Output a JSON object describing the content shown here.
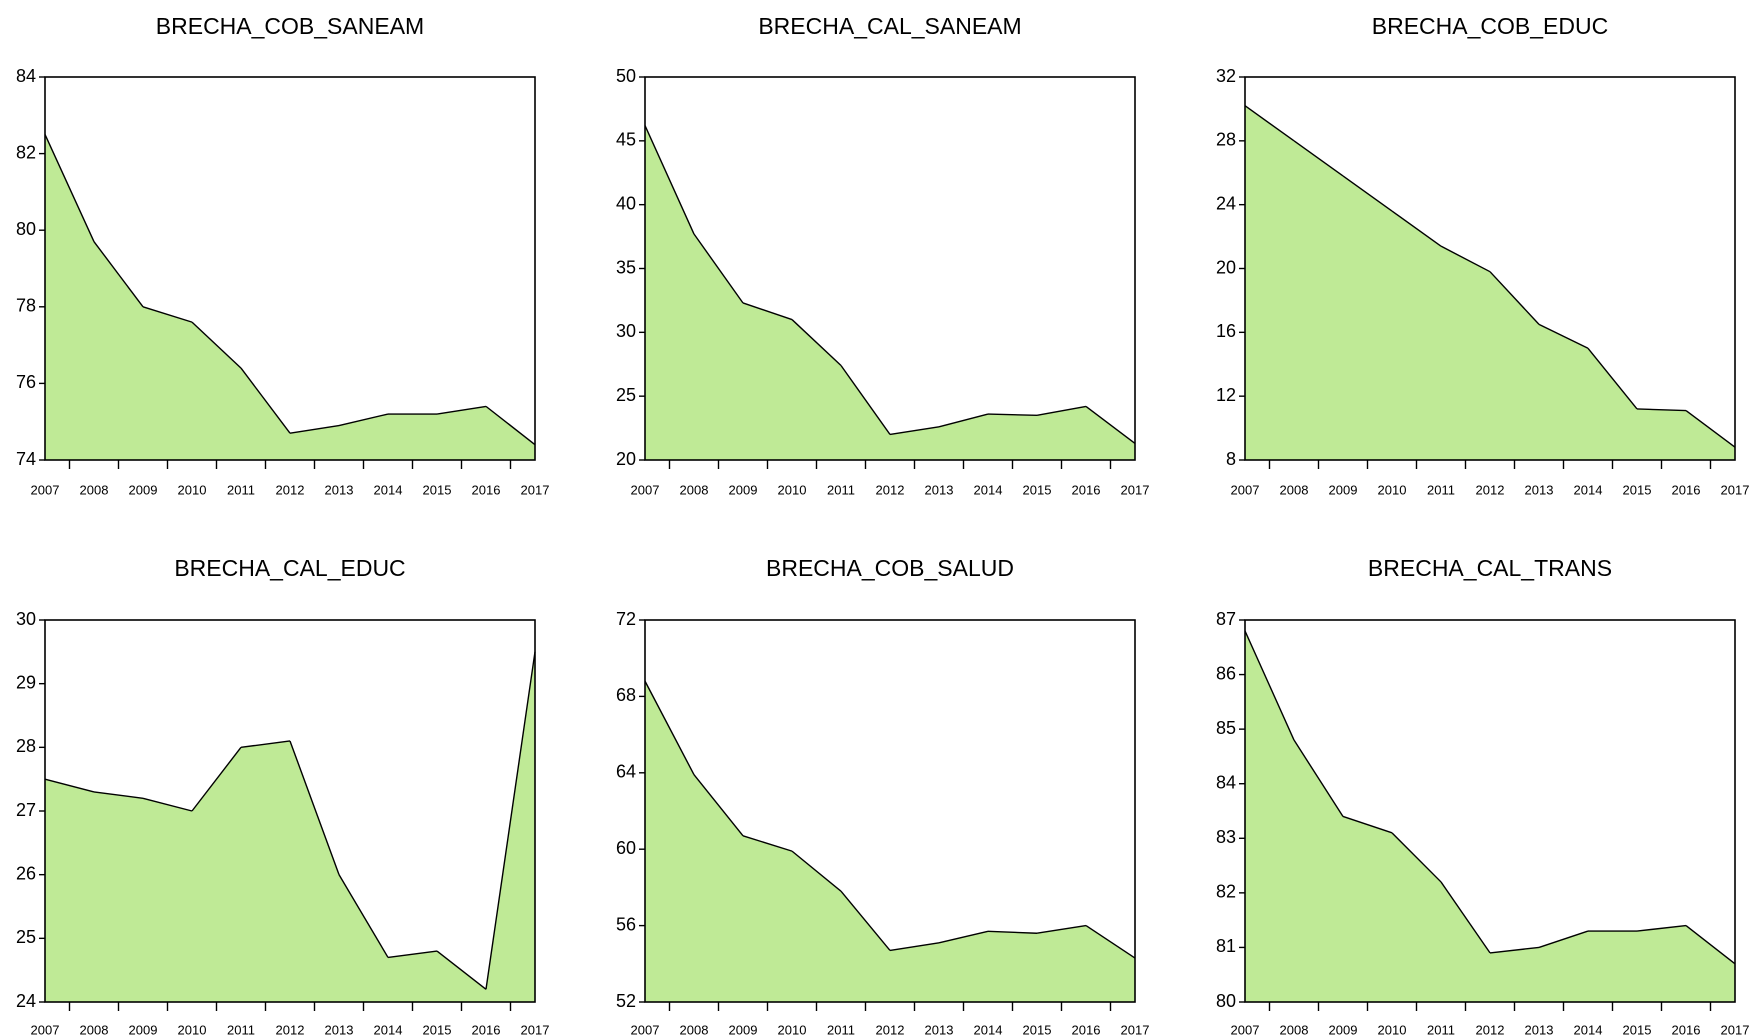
{
  "style": {
    "fill_color": "#BFEA96",
    "line_color": "#000000",
    "frame_color": "#000000"
  },
  "chart_data": [
    {
      "type": "area",
      "title": "BRECHA_COB_SANEAM",
      "x": [
        2007,
        2008,
        2009,
        2010,
        2011,
        2012,
        2013,
        2014,
        2015,
        2016,
        2017
      ],
      "values": [
        82.5,
        79.7,
        78.0,
        77.6,
        76.4,
        74.7,
        74.9,
        75.2,
        75.2,
        75.4,
        74.4
      ],
      "ylim": [
        74,
        84
      ],
      "yticks": [
        "74",
        "76",
        "78",
        "80",
        "82",
        "84"
      ],
      "grid": false
    },
    {
      "type": "area",
      "title": "BRECHA_CAL_SANEAM",
      "x": [
        2007,
        2008,
        2009,
        2010,
        2011,
        2012,
        2013,
        2014,
        2015,
        2016,
        2017
      ],
      "values": [
        46.2,
        37.7,
        32.3,
        31.0,
        27.4,
        22.0,
        22.6,
        23.6,
        23.5,
        24.2,
        21.3
      ],
      "ylim": [
        20,
        50
      ],
      "yticks": [
        "20",
        "25",
        "30",
        "35",
        "40",
        "45",
        "50"
      ],
      "grid": false
    },
    {
      "type": "area",
      "title": "BRECHA_COB_EDUC",
      "x": [
        2007,
        2008,
        2009,
        2010,
        2011,
        2012,
        2013,
        2014,
        2015,
        2016,
        2017
      ],
      "values": [
        30.2,
        28.0,
        25.8,
        23.6,
        21.4,
        19.8,
        16.5,
        15.0,
        11.2,
        11.1,
        8.8
      ],
      "ylim": [
        8,
        32
      ],
      "yticks": [
        "8",
        "12",
        "16",
        "20",
        "24",
        "28",
        "32"
      ],
      "grid": false
    },
    {
      "type": "area",
      "title": "BRECHA_CAL_EDUC",
      "x": [
        2007,
        2008,
        2009,
        2010,
        2011,
        2012,
        2013,
        2014,
        2015,
        2016,
        2017
      ],
      "values": [
        27.5,
        27.3,
        27.2,
        27.0,
        28.0,
        28.1,
        26.0,
        24.7,
        24.8,
        24.2,
        29.5
      ],
      "ylim": [
        24,
        30
      ],
      "yticks": [
        "24",
        "25",
        "26",
        "27",
        "28",
        "29",
        "30"
      ],
      "grid": false
    },
    {
      "type": "area",
      "title": "BRECHA_COB_SALUD",
      "x": [
        2007,
        2008,
        2009,
        2010,
        2011,
        2012,
        2013,
        2014,
        2015,
        2016,
        2017
      ],
      "values": [
        68.8,
        63.9,
        60.7,
        59.9,
        57.8,
        54.7,
        55.1,
        55.7,
        55.6,
        56.0,
        54.3
      ],
      "ylim": [
        52,
        72
      ],
      "yticks": [
        "52",
        "56",
        "60",
        "64",
        "68",
        "72"
      ],
      "grid": false
    },
    {
      "type": "area",
      "title": "BRECHA_CAL_TRANS",
      "x": [
        2007,
        2008,
        2009,
        2010,
        2011,
        2012,
        2013,
        2014,
        2015,
        2016,
        2017
      ],
      "values": [
        86.8,
        84.8,
        83.4,
        83.1,
        82.2,
        80.9,
        81.0,
        81.3,
        81.3,
        81.4,
        80.7
      ],
      "ylim": [
        80,
        87
      ],
      "yticks": [
        "80",
        "81",
        "82",
        "83",
        "84",
        "85",
        "86",
        "87"
      ],
      "grid": false
    }
  ]
}
